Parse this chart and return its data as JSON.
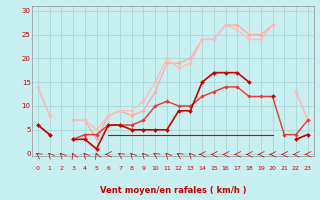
{
  "xlabel": "Vent moyen/en rafales ( km/h )",
  "background_color": "#c8f0f0",
  "grid_color": "#a8d8d8",
  "x_ticks": [
    0,
    1,
    2,
    3,
    4,
    5,
    6,
    7,
    8,
    9,
    10,
    11,
    12,
    13,
    14,
    15,
    16,
    17,
    18,
    19,
    20,
    21,
    22,
    23
  ],
  "y_ticks": [
    0,
    5,
    10,
    15,
    20,
    25,
    30
  ],
  "ylim": [
    -0.5,
    31
  ],
  "xlim": [
    -0.5,
    23.5
  ],
  "series": [
    {
      "x": [
        0,
        1,
        2,
        3,
        4,
        5,
        6,
        7,
        8,
        9,
        10,
        11,
        12,
        13,
        14,
        15,
        16,
        17,
        18,
        19,
        20,
        21,
        22,
        23
      ],
      "y": [
        null,
        null,
        null,
        null,
        null,
        null,
        4,
        4,
        4,
        4,
        4,
        4,
        4,
        4,
        4,
        4,
        4,
        4,
        4,
        4,
        4,
        null,
        4,
        null
      ],
      "color": "#cc0000",
      "marker": null,
      "markersize": 0,
      "linewidth": 0.8,
      "zorder": 3
    },
    {
      "x": [
        0,
        1,
        2,
        3,
        4,
        5,
        6,
        7,
        8,
        9,
        10,
        11,
        12,
        13,
        14,
        15,
        16,
        17,
        18,
        19,
        20,
        21,
        22,
        23
      ],
      "y": [
        6,
        4,
        null,
        3,
        3,
        1,
        6,
        6,
        5,
        5,
        5,
        5,
        9,
        9,
        15,
        17,
        17,
        17,
        15,
        null,
        12,
        null,
        3,
        4
      ],
      "color": "#cc0000",
      "marker": "D",
      "markersize": 2.0,
      "linewidth": 1.2,
      "zorder": 5
    },
    {
      "x": [
        0,
        1,
        2,
        3,
        4,
        5,
        6,
        7,
        8,
        9,
        10,
        11,
        12,
        13,
        14,
        15,
        16,
        17,
        18,
        19,
        20,
        21,
        22,
        23
      ],
      "y": [
        6,
        4,
        null,
        3,
        4,
        4,
        6,
        6,
        6,
        7,
        10,
        11,
        10,
        10,
        12,
        13,
        14,
        14,
        12,
        12,
        12,
        4,
        4,
        7
      ],
      "color": "#ee3333",
      "marker": "D",
      "markersize": 1.8,
      "linewidth": 1.0,
      "zorder": 4
    },
    {
      "x": [
        0,
        1,
        2,
        3,
        4,
        5,
        6,
        7,
        8,
        9,
        10,
        11,
        12,
        13,
        14,
        15,
        16,
        17,
        18,
        19,
        20,
        21,
        22,
        23
      ],
      "y": [
        14,
        8,
        null,
        7,
        7,
        3,
        8,
        9,
        8,
        9,
        13,
        19,
        19,
        20,
        24,
        24,
        27,
        27,
        25,
        25,
        27,
        null,
        13,
        7
      ],
      "color": "#ffaaaa",
      "marker": "D",
      "markersize": 1.8,
      "linewidth": 1.0,
      "zorder": 2
    },
    {
      "x": [
        0,
        1,
        2,
        3,
        4,
        5,
        6,
        7,
        8,
        9,
        10,
        11,
        12,
        13,
        14,
        15,
        16,
        17,
        18,
        19,
        20,
        21,
        22,
        23
      ],
      "y": [
        14,
        8,
        null,
        7,
        7,
        5,
        8,
        9,
        9,
        11,
        15,
        20,
        18,
        19,
        24,
        24,
        27,
        26,
        24,
        24,
        27,
        null,
        13,
        7
      ],
      "color": "#ffbbbb",
      "marker": "D",
      "markersize": 1.8,
      "linewidth": 1.0,
      "zorder": 2
    }
  ],
  "wind_arrows": {
    "color": "#cc0000",
    "angles_deg": [
      225,
      210,
      210,
      195,
      210,
      195,
      270,
      225,
      210,
      210,
      225,
      210,
      225,
      210,
      270,
      270,
      270,
      270,
      270,
      270,
      270,
      270,
      270,
      270
    ]
  },
  "tick_label_color": "#cc0000",
  "axis_label_color": "#cc0000"
}
